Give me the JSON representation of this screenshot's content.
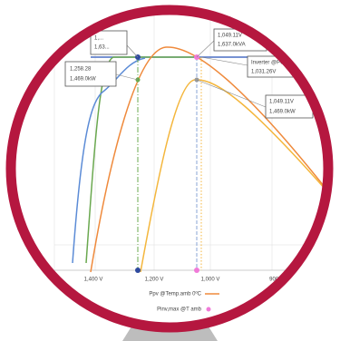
{
  "annotations": {
    "top_left": [
      "1,...",
      "1,63..."
    ],
    "top_right": [
      "1,049.11V",
      "1,637.0kVA"
    ],
    "inverter": [
      "Inverter @PO",
      "1,031.26V"
    ],
    "left": [
      "1,258.28",
      "1,469.0kW"
    ],
    "right": [
      "1,049.11V",
      "1,469.0kW"
    ]
  },
  "x_axis_labels": [
    "1,400 V",
    "1,200 V",
    "1,000 V",
    "900 V"
  ],
  "legend": [
    "Ppv @Temp.amb 0ºC",
    "Pinv,max @T amb"
  ]
}
